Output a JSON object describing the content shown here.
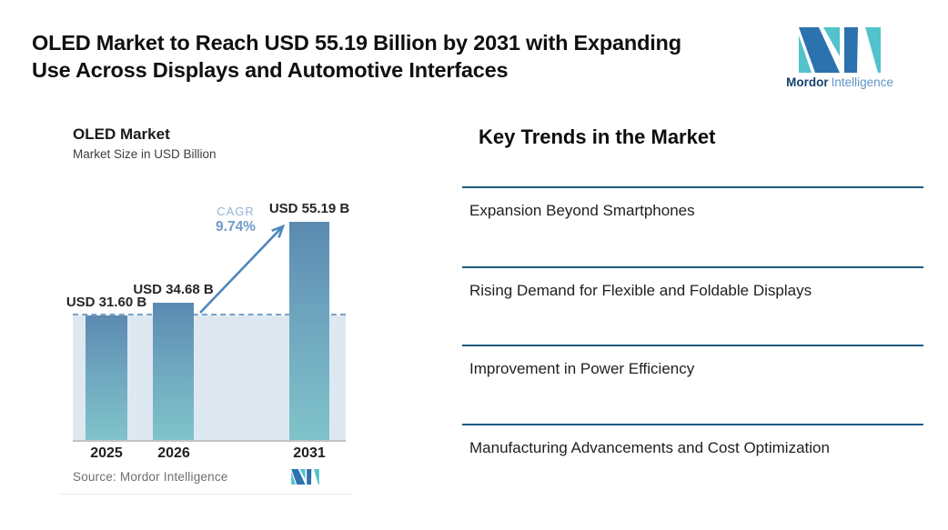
{
  "headline": {
    "line1": "OLED Market to Reach USD 55.19 Billion by 2031 with Expanding",
    "line2": "Use Across Displays and Automotive Interfaces"
  },
  "brand": {
    "word1": "Mordor",
    "word2": "Intelligence"
  },
  "chart": {
    "title": "OLED Market",
    "subtitle": "Market Size in USD Billion",
    "cagr_label": "CAGR",
    "cagr_value": "9.74%",
    "source": "Source: Mordor Intelligence",
    "bars": [
      {
        "year": "2025",
        "label": "USD 31.60 B",
        "value": 31.6
      },
      {
        "year": "2026",
        "label": "USD 34.68 B",
        "value": 34.68
      },
      {
        "year": "2031",
        "label": "USD 55.19 B",
        "value": 55.19
      }
    ]
  },
  "chart_data": {
    "type": "bar",
    "title": "OLED Market",
    "subtitle": "Market Size in USD Billion",
    "categories": [
      "2025",
      "2026",
      "2031"
    ],
    "values": [
      31.6,
      34.68,
      55.19
    ],
    "ylabel": "Market Size in USD Billion",
    "ylim": [
      0,
      60
    ],
    "grid": false,
    "legend": "none",
    "annotations": {
      "bar_labels": [
        "USD 31.60 B",
        "USD 34.68 B",
        "USD 55.19 B"
      ],
      "cagr": "CAGR 9.74%",
      "dashed_reference_level": 31.6,
      "source": "Source: Mordor Intelligence"
    }
  },
  "trends": {
    "heading": "Key Trends in the Market",
    "items": [
      "Expansion Beyond Smartphones",
      "Rising Demand for Flexible and Foldable Displays",
      "Improvement in Power Efficiency",
      "Manufacturing Advancements and Cost Optimization"
    ]
  },
  "colors": {
    "bar_gradient_top": "#5b8ab1",
    "bar_gradient_bottom": "#80c3ca",
    "plot_background": "#dee8f1",
    "dashed_line": "#78a3c8",
    "arrow": "#4e87bc",
    "cagr_text": "#6f9cca",
    "divider": "#1a5c80",
    "logo_dark_blue": "#2b72ae",
    "logo_teal": "#52c2cd"
  }
}
